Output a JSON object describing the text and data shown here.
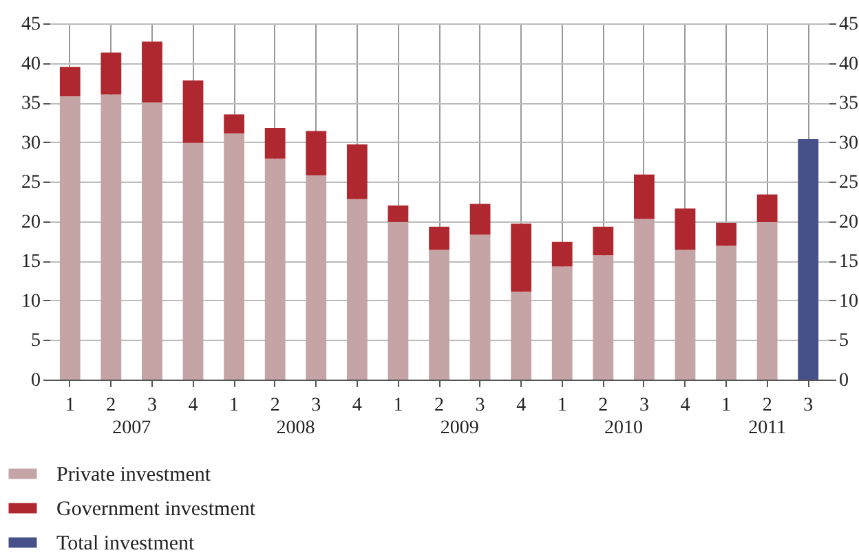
{
  "chart_data": {
    "type": "bar",
    "stacked": true,
    "categories": [
      "1",
      "2",
      "3",
      "4",
      "1",
      "2",
      "3",
      "4",
      "1",
      "2",
      "3",
      "4",
      "1",
      "2",
      "3",
      "4",
      "1",
      "2",
      "3"
    ],
    "annotations": [
      "2007",
      "2008",
      "2009",
      "2010",
      "2011"
    ],
    "series": [
      {
        "name": "Private investment",
        "color": "#c4a4a4",
        "values": [
          35.8,
          36,
          35,
          29.9,
          31.1,
          27.9,
          25.8,
          22.8,
          19.9,
          16.4,
          18.3,
          11.1,
          14.3,
          15.7,
          20.3,
          16.4,
          16.9,
          19.9,
          null
        ]
      },
      {
        "name": "Government investment",
        "color": "#b0282f",
        "values": [
          3.7,
          5.3,
          7.7,
          7.9,
          2.4,
          3.9,
          5.6,
          6.9,
          2.1,
          2.9,
          3.9,
          8.6,
          3.1,
          3.6,
          5.6,
          5.2,
          2.9,
          3.5,
          null
        ]
      },
      {
        "name": "Total investment",
        "color": "#46518a",
        "values": [
          null,
          null,
          null,
          null,
          null,
          null,
          null,
          null,
          null,
          null,
          null,
          null,
          null,
          null,
          null,
          null,
          null,
          null,
          30.4
        ]
      }
    ],
    "ylim": [
      0,
      45
    ],
    "yticks": [
      0,
      5,
      10,
      15,
      20,
      25,
      30,
      35,
      40,
      45
    ],
    "y2lim": [
      0,
      45
    ],
    "y2ticks": [
      0,
      5,
      10,
      15,
      20,
      25,
      30,
      35,
      40,
      45
    ],
    "grid": true,
    "legend": "bottom left"
  }
}
